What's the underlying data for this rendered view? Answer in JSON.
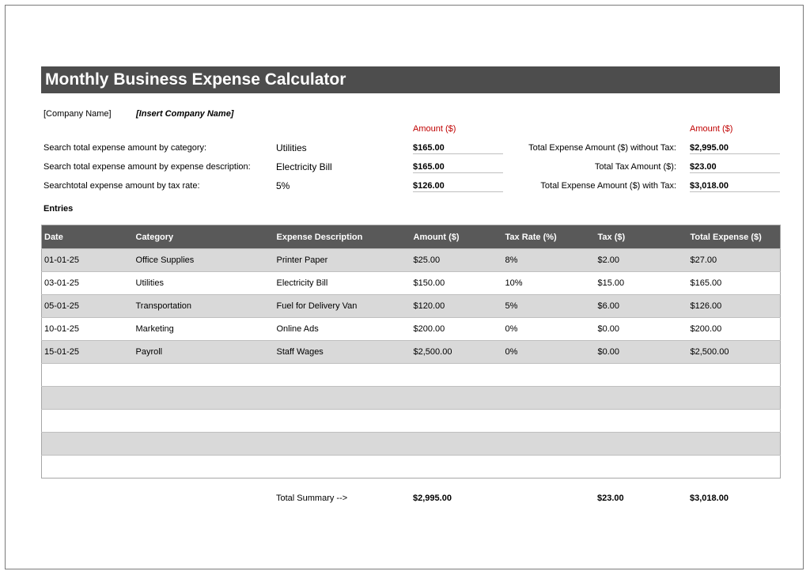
{
  "title": "Monthly Business Expense Calculator",
  "company": {
    "label": "[Company Name]",
    "value": "[Insert Company Name]"
  },
  "amount_header": "Amount ($)",
  "search": [
    {
      "label": "Search total expense amount by category:",
      "value": "Utilities",
      "amount": "$165.00"
    },
    {
      "label": "Search total expense amount by expense description:",
      "value": "Electricity Bill",
      "amount": "$165.00"
    },
    {
      "label": "Searchtotal expense amount by tax rate:",
      "value": "5%",
      "amount": "$126.00"
    }
  ],
  "totals": [
    {
      "label": "Total Expense Amount ($) without Tax:",
      "amount": "$2,995.00"
    },
    {
      "label": "Total Tax Amount ($):",
      "amount": "$23.00"
    },
    {
      "label": "Total Expense Amount ($) with Tax:",
      "amount": "$3,018.00"
    }
  ],
  "entries_heading": "Entries",
  "columns": [
    "Date",
    "Category",
    "Expense Description",
    "Amount ($)",
    "Tax Rate (%)",
    "Tax ($)",
    "Total Expense ($)"
  ],
  "rows": [
    [
      "01-01-25",
      "Office Supplies",
      "Printer Paper",
      "$25.00",
      "8%",
      "$2.00",
      "$27.00"
    ],
    [
      "03-01-25",
      "Utilities",
      "Electricity Bill",
      "$150.00",
      "10%",
      "$15.00",
      "$165.00"
    ],
    [
      "05-01-25",
      "Transportation",
      "Fuel for Delivery Van",
      "$120.00",
      "5%",
      "$6.00",
      "$126.00"
    ],
    [
      "10-01-25",
      "Marketing",
      "Online Ads",
      "$200.00",
      "0%",
      "$0.00",
      "$200.00"
    ],
    [
      "15-01-25",
      "Payroll",
      "Staff Wages",
      "$2,500.00",
      "0%",
      "$0.00",
      "$2,500.00"
    ],
    [
      "",
      "",
      "",
      "",
      "",
      "",
      ""
    ],
    [
      "",
      "",
      "",
      "",
      "",
      "",
      ""
    ],
    [
      "",
      "",
      "",
      "",
      "",
      "",
      ""
    ],
    [
      "",
      "",
      "",
      "",
      "",
      "",
      ""
    ],
    [
      "",
      "",
      "",
      "",
      "",
      "",
      ""
    ]
  ],
  "summary": {
    "label": "Total Summary -->",
    "amount": "$2,995.00",
    "tax": "$23.00",
    "total": "$3,018.00"
  }
}
